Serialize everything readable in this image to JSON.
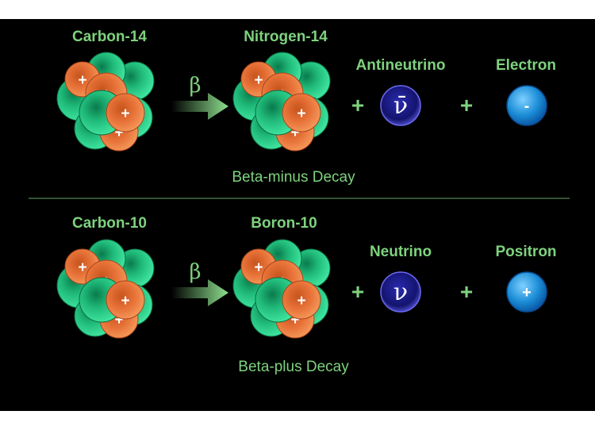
{
  "colors": {
    "background": "#000000",
    "label": "#7ed27e",
    "proton": "#e8743a",
    "neutron": "#2fd08e",
    "neutrino": "#1c1c8a",
    "lepton": "#2196e0"
  },
  "beta_minus": {
    "parent": "Carbon-14",
    "daughter": "Nitrogen-14",
    "arrow_symbol": "β",
    "particle1": {
      "name": "Antineutrino",
      "symbol": "ν̄"
    },
    "particle2": {
      "name": "Electron",
      "symbol": "-"
    },
    "plus": "+",
    "caption": "Beta-minus Decay"
  },
  "beta_plus": {
    "parent": "Carbon-10",
    "daughter": "Boron-10",
    "arrow_symbol": "β",
    "particle1": {
      "name": "Neutrino",
      "symbol": "ν"
    },
    "particle2": {
      "name": "Positron",
      "symbol": "+"
    },
    "plus": "+",
    "caption": "Beta-plus Decay"
  },
  "proton_mark": "+"
}
